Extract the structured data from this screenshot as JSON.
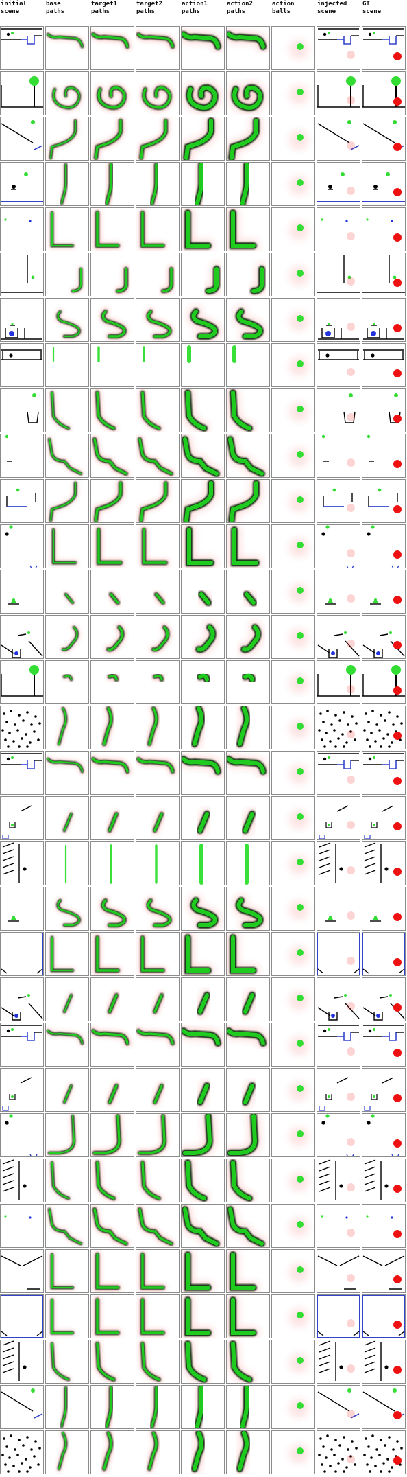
{
  "columns": [
    {
      "key": "initial",
      "label": "initial\nscene"
    },
    {
      "key": "base",
      "label": "base\npaths"
    },
    {
      "key": "target1",
      "label": "target1\npaths"
    },
    {
      "key": "target2",
      "label": "target2\npaths"
    },
    {
      "key": "action1",
      "label": "action1\npaths"
    },
    {
      "key": "action2",
      "label": "action2\npaths"
    },
    {
      "key": "balls",
      "label": "action\nballs"
    },
    {
      "key": "injected",
      "label": "injected\nscene"
    },
    {
      "key": "gt",
      "label": "GT\nscene"
    }
  ],
  "colors": {
    "path_green": "#22dd22",
    "path_dark": "#0c2a0c",
    "path_red": "#f04040",
    "ball_red": "#ee1111",
    "ball_green": "#33dd33",
    "ball_blue": "#2233dd",
    "wall_black": "#000000",
    "border_gray": "#8c8c8c",
    "blue_line": "#3344cc"
  },
  "rows": [
    {
      "scene": "basket-right",
      "path": "hook-short"
    },
    {
      "scene": "ball-on-post",
      "path": "spiral"
    },
    {
      "scene": "slope-down",
      "path": "L-bend"
    },
    {
      "scene": "floor-balls",
      "path": "vertical"
    },
    {
      "scene": "dots-sparse",
      "path": "L-flat"
    },
    {
      "scene": "pillar",
      "path": "J-right"
    },
    {
      "scene": "cup-blue",
      "path": "S-loop"
    },
    {
      "scene": "floor-cups",
      "path": "short-vertical"
    },
    {
      "scene": "cup-right",
      "path": "vertical-curve"
    },
    {
      "scene": "bar-left",
      "path": "zigzag"
    },
    {
      "scene": "blue-bar",
      "path": "L-bend"
    },
    {
      "scene": "black-ball",
      "path": "L-long"
    },
    {
      "scene": "green-small",
      "path": "diagonal"
    },
    {
      "scene": "cup-slope",
      "path": "hook-left"
    },
    {
      "scene": "ball-on-post",
      "path": "blob"
    },
    {
      "scene": "dots-dense",
      "path": "curve-tall"
    },
    {
      "scene": "basket-right",
      "path": "hook-short"
    },
    {
      "scene": "cup-small",
      "path": "diagonal-short"
    },
    {
      "scene": "hatch-left",
      "path": "vertical-tall"
    },
    {
      "scene": "green-small",
      "path": "S-loop"
    },
    {
      "scene": "frame-blue",
      "path": "L-flat"
    },
    {
      "scene": "cup-slope",
      "path": "diagonal-short"
    },
    {
      "scene": "basket-right",
      "path": "hook-short"
    },
    {
      "scene": "cup-small",
      "path": "diagonal-short"
    },
    {
      "scene": "black-ball",
      "path": "J-tall"
    },
    {
      "scene": "hatch-left",
      "path": "vertical-curve"
    },
    {
      "scene": "dots-sparse",
      "path": "zigzag"
    },
    {
      "scene": "cone",
      "path": "L-flat"
    },
    {
      "scene": "frame-blue",
      "path": "L-flat"
    },
    {
      "scene": "hatch-left",
      "path": "vertical-curve"
    },
    {
      "scene": "slope-down",
      "path": "vertical"
    },
    {
      "scene": "dots-dense",
      "path": "curve-tall"
    }
  ]
}
